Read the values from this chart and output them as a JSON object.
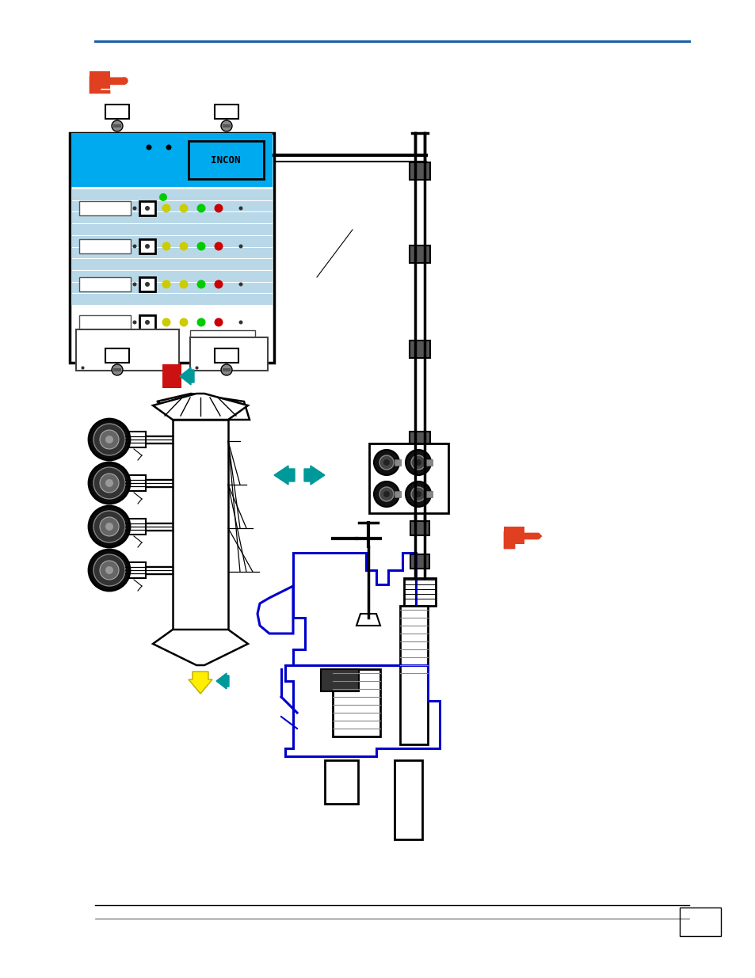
{
  "page_bg": "#ffffff",
  "top_line_color": "#1a5fa8",
  "bottom_line_color": "#000000",
  "hand_color": "#e04020",
  "ctrl_border": "#1a5fa8",
  "ctrl_fill": "#e8f4f8",
  "ctrl_header_fill": "#00aaee",
  "panel_stripe": "#b8d8e8",
  "panel_bg": "#d0e8f0",
  "btn_fill": "#cccccc",
  "btn_border": "#666666",
  "indicator_yellow": "#cccc00",
  "indicator_green": "#00cc00",
  "indicator_red": "#cc0000",
  "disp_fill": "#dddddd",
  "mounting_fill": "#888888",
  "red_arrow": "#cc1111",
  "yellow_arrow": "#ffee00",
  "yellow_border": "#bbaa00",
  "cyan_arrow": "#009999",
  "pipe_color": "#000000",
  "fitting_fill": "#555555",
  "jbox_fill": "#e0e0e0",
  "pump_blue": "#0000cc",
  "black_pump": "#111111",
  "grey_pump": "#888888"
}
